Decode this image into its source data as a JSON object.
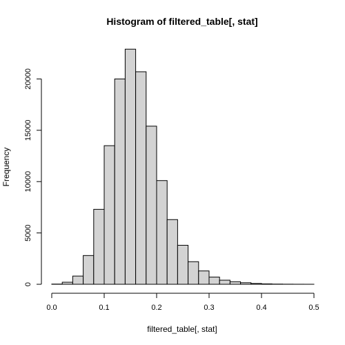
{
  "chart_data": {
    "type": "bar",
    "title": "Histogram of filtered_table[, stat]",
    "xlabel": "filtered_table[, stat]",
    "ylabel": "Frequency",
    "bar_color": "#d3d3d3",
    "bin_width": 0.02,
    "xlim": [
      0,
      0.5
    ],
    "ylim": [
      0,
      23000
    ],
    "x_ticks": [
      "0.0",
      "0.1",
      "0.2",
      "0.3",
      "0.4",
      "0.5"
    ],
    "y_ticks": [
      "0",
      "5000",
      "10000",
      "15000",
      "20000"
    ],
    "bins": [
      {
        "start": 0.0,
        "end": 0.02,
        "value": 20
      },
      {
        "start": 0.02,
        "end": 0.04,
        "value": 200
      },
      {
        "start": 0.04,
        "end": 0.06,
        "value": 800
      },
      {
        "start": 0.06,
        "end": 0.08,
        "value": 2800
      },
      {
        "start": 0.08,
        "end": 0.1,
        "value": 7300
      },
      {
        "start": 0.1,
        "end": 0.12,
        "value": 13500
      },
      {
        "start": 0.12,
        "end": 0.14,
        "value": 20000
      },
      {
        "start": 0.14,
        "end": 0.16,
        "value": 22900
      },
      {
        "start": 0.16,
        "end": 0.18,
        "value": 20700
      },
      {
        "start": 0.18,
        "end": 0.2,
        "value": 15400
      },
      {
        "start": 0.2,
        "end": 0.22,
        "value": 10100
      },
      {
        "start": 0.22,
        "end": 0.24,
        "value": 6300
      },
      {
        "start": 0.24,
        "end": 0.26,
        "value": 3800
      },
      {
        "start": 0.26,
        "end": 0.28,
        "value": 2200
      },
      {
        "start": 0.28,
        "end": 0.3,
        "value": 1300
      },
      {
        "start": 0.3,
        "end": 0.32,
        "value": 700
      },
      {
        "start": 0.32,
        "end": 0.34,
        "value": 400
      },
      {
        "start": 0.34,
        "end": 0.36,
        "value": 250
      },
      {
        "start": 0.36,
        "end": 0.38,
        "value": 150
      },
      {
        "start": 0.38,
        "end": 0.4,
        "value": 80
      },
      {
        "start": 0.4,
        "end": 0.42,
        "value": 40
      },
      {
        "start": 0.42,
        "end": 0.44,
        "value": 20
      },
      {
        "start": 0.44,
        "end": 0.46,
        "value": 10
      },
      {
        "start": 0.46,
        "end": 0.48,
        "value": 5
      },
      {
        "start": 0.48,
        "end": 0.5,
        "value": 3
      }
    ]
  }
}
